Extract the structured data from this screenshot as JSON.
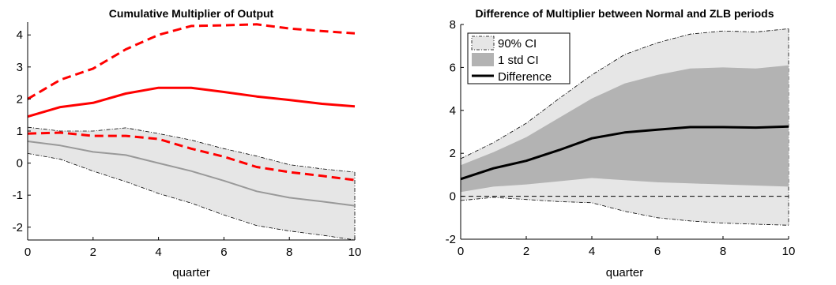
{
  "chart_data": [
    {
      "type": "line",
      "title": "Cumulative Multiplier of Output",
      "xlabel": "quarter",
      "ylabel": "",
      "xlim": [
        0,
        10
      ],
      "ylim": [
        -2.4,
        4.4
      ],
      "x": [
        0,
        1,
        2,
        3,
        4,
        5,
        6,
        7,
        8,
        9,
        10
      ],
      "xticks": [
        "0",
        "2",
        "4",
        "6",
        "8",
        "10"
      ],
      "yticks": [
        "-2",
        "-1",
        "0",
        "1",
        "2",
        "3",
        "4"
      ],
      "series": [
        {
          "role": "band",
          "color": "#e6e6e6",
          "lower": [
            0.3,
            0.12,
            -0.25,
            -0.58,
            -0.95,
            -1.25,
            -1.62,
            -1.95,
            -2.12,
            -2.25,
            -2.4
          ],
          "upper": [
            1.12,
            1.0,
            1.0,
            1.1,
            0.92,
            0.72,
            0.45,
            0.22,
            -0.05,
            -0.18,
            -0.28
          ]
        },
        {
          "role": "median-normal",
          "color": "#999999",
          "values": [
            0.68,
            0.55,
            0.35,
            0.25,
            0.0,
            -0.25,
            -0.55,
            -0.88,
            -1.08,
            -1.2,
            -1.33
          ]
        },
        {
          "role": "median-zlb",
          "color": "#ff0000",
          "values": [
            1.45,
            1.75,
            1.88,
            2.17,
            2.35,
            2.35,
            2.22,
            2.08,
            1.97,
            1.85,
            1.77
          ]
        },
        {
          "role": "upper-zlb",
          "color": "#ff0000",
          "dashed": true,
          "values": [
            2.0,
            2.6,
            2.95,
            3.55,
            4.0,
            4.28,
            4.3,
            4.33,
            4.2,
            4.12,
            4.05
          ]
        },
        {
          "role": "lower-zlb",
          "color": "#ff0000",
          "dashed": true,
          "values": [
            0.92,
            0.95,
            0.85,
            0.85,
            0.75,
            0.45,
            0.2,
            -0.12,
            -0.28,
            -0.4,
            -0.53
          ]
        }
      ]
    },
    {
      "type": "line",
      "title": "Difference of Multiplier between Normal and ZLB periods",
      "xlabel": "quarter",
      "ylabel": "",
      "xlim": [
        0,
        10
      ],
      "ylim": [
        -2,
        8
      ],
      "x": [
        0,
        1,
        2,
        3,
        4,
        5,
        6,
        7,
        8,
        9,
        10
      ],
      "xticks": [
        "0",
        "2",
        "4",
        "6",
        "8",
        "10"
      ],
      "yticks": [
        "-2",
        "0",
        "2",
        "4",
        "6",
        "8"
      ],
      "legend": {
        "position": "top-left"
      },
      "series": [
        {
          "name": "90% CI",
          "role": "band90",
          "color": "#e6e6e6",
          "lower": [
            -0.2,
            -0.05,
            -0.15,
            -0.25,
            -0.3,
            -0.7,
            -1.0,
            -1.15,
            -1.25,
            -1.3,
            -1.35
          ],
          "upper": [
            1.75,
            2.5,
            3.4,
            4.55,
            5.65,
            6.6,
            7.15,
            7.55,
            7.7,
            7.65,
            7.8
          ]
        },
        {
          "name": "1 std CI",
          "role": "band1sd",
          "color": "#b3b3b3",
          "lower": [
            0.2,
            0.45,
            0.55,
            0.7,
            0.85,
            0.75,
            0.65,
            0.6,
            0.55,
            0.5,
            0.45
          ],
          "upper": [
            1.45,
            2.05,
            2.75,
            3.65,
            4.55,
            5.25,
            5.65,
            5.95,
            6.0,
            5.95,
            6.1
          ]
        },
        {
          "name": "Difference",
          "role": "line",
          "color": "#000000",
          "values": [
            0.8,
            1.3,
            1.65,
            2.15,
            2.7,
            2.97,
            3.1,
            3.22,
            3.22,
            3.2,
            3.25
          ]
        }
      ]
    }
  ]
}
